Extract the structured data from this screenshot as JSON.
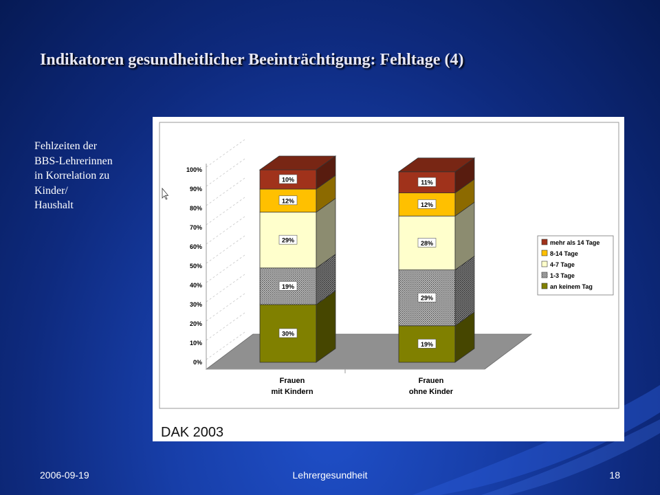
{
  "slide": {
    "title": "Indikatoren gesundheitlicher Beeinträchtigung: Fehltage (4)",
    "side_text": [
      "Fehlzeiten der",
      "BBS-Lehrerinnen",
      "in Korrelation zu",
      "Kinder/",
      "Haushalt"
    ],
    "source": "DAK 2003",
    "footer": {
      "date": "2006-09-19",
      "center": "Lehrergesundheit",
      "page": "18"
    }
  },
  "colors": {
    "background": "#173ea8",
    "mehr_als_14": "#a0321b",
    "8_14": "#ffc000",
    "4_7": "#ffffcc",
    "1_3": "#a8a8a8",
    "an_keinem": "#808000",
    "floor": "#909090"
  },
  "chart_data": {
    "type": "bar",
    "stacked": true,
    "three_d": true,
    "categories": [
      [
        "Frauen",
        "mit Kindern"
      ],
      [
        "Frauen",
        "ohne Kinder"
      ]
    ],
    "series": [
      {
        "name": "an keinem Tag",
        "values": [
          30,
          19
        ],
        "labels": [
          "30%",
          "19%"
        ]
      },
      {
        "name": "1-3 Tage",
        "values": [
          19,
          29
        ],
        "labels": [
          "19%",
          "29%"
        ]
      },
      {
        "name": "4-7 Tage",
        "values": [
          29,
          28
        ],
        "labels": [
          "29%",
          "28%"
        ]
      },
      {
        "name": "8-14 Tage",
        "values": [
          12,
          12
        ],
        "labels": [
          "12%",
          "12%"
        ]
      },
      {
        "name": "mehr als 14 Tage",
        "values": [
          10,
          11
        ],
        "labels": [
          "10%",
          "11%"
        ]
      }
    ],
    "legend_order": [
      "mehr als 14 Tage",
      "8-14 Tage",
      "4-7 Tage",
      "1-3 Tage",
      "an keinem Tag"
    ],
    "legend_position": "right",
    "y_ticks": [
      "0%",
      "10%",
      "20%",
      "30%",
      "40%",
      "50%",
      "60%",
      "70%",
      "80%",
      "90%",
      "100%"
    ],
    "ylim": [
      0,
      100
    ]
  }
}
